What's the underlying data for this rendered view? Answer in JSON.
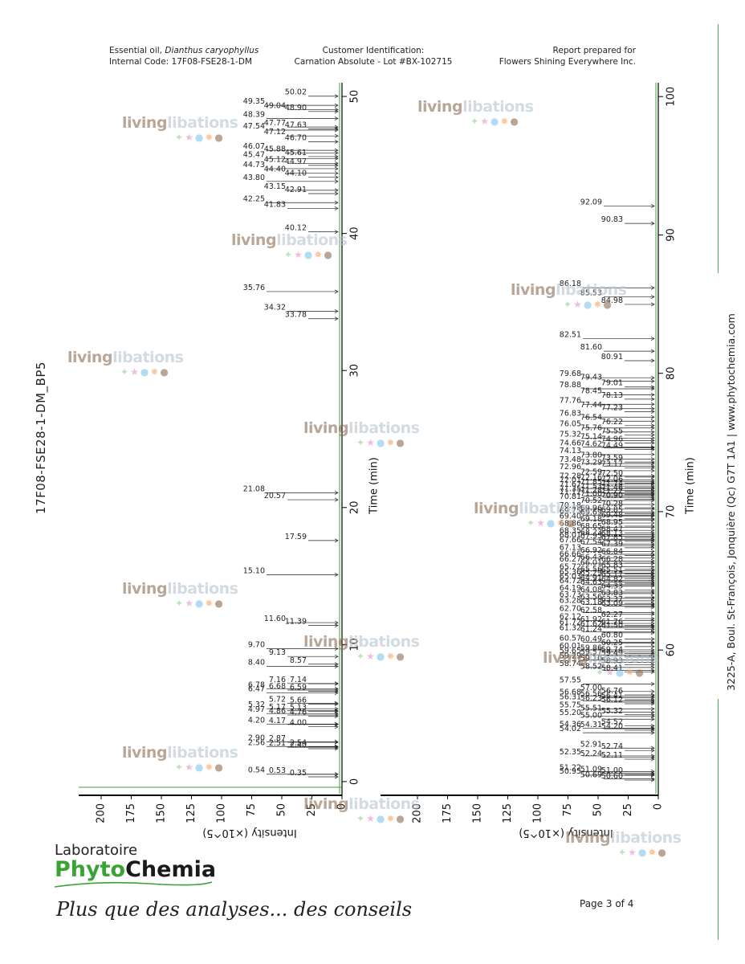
{
  "header": {
    "left_line1_prefix": "Essential oil, ",
    "left_line1_italic": "Dianthus caryophyllus",
    "left_line2": "Internal Code: 17F08-FSE28-1-DM",
    "mid_line1": "Customer Identification:",
    "mid_line2": "Carnation Absolute - Lot #BX-102715",
    "right_line1": "Report prepared for",
    "right_line2": "Flowers Shining Everywhere Inc."
  },
  "sample_label": "17F08-FSE28-1-DM_BP5",
  "side_address": "3225-A, Boul. St-François, Jonquière (Qc)  G7T 1A1  |  www.phytochemia.com",
  "footer": {
    "lab_line1": "Laboratoire",
    "lab_line2_a": "Phy",
    "lab_line2_b": "to",
    "lab_line2_c": "Chemia",
    "slogan": "Plus que des analyses... des conseils",
    "page": "Page 3 of 4"
  },
  "watermark": {
    "part1": "living",
    "part2": "libations",
    "dots": "✦★●✸●"
  },
  "colors": {
    "accent_green": "#3aa335",
    "trace": "#222222",
    "axis": "#000000"
  },
  "chart_data": [
    {
      "type": "line",
      "title": "",
      "xlabel": "Time (min)",
      "ylabel": "Intensity (x10^5)",
      "xlim": [
        -1,
        51
      ],
      "ylim": [
        0,
        220
      ],
      "x_ticks": [
        0,
        10,
        20,
        30,
        40,
        50
      ],
      "y_ticks": [
        0,
        25,
        50,
        75,
        100,
        125,
        150,
        175,
        200
      ],
      "y_tick_labels": [
        "0",
        "25",
        "50",
        "75",
        "100",
        "125",
        "150",
        "175",
        "200"
      ],
      "y_unit_label": "Intensity (×10^5)",
      "peaks": [
        {
          "t": 0.35,
          "label": "0.35"
        },
        {
          "t": 0.53,
          "label": "0.53"
        },
        {
          "t": 0.54,
          "label": "0.54"
        },
        {
          "t": 2.4,
          "label": "2.40"
        },
        {
          "t": 2.51,
          "label": "2.51"
        },
        {
          "t": 2.56,
          "label": "2.56"
        },
        {
          "t": 2.54,
          "label": "2.54"
        },
        {
          "t": 2.87,
          "label": "2.87"
        },
        {
          "t": 2.9,
          "label": "2.90"
        },
        {
          "t": 4.0,
          "label": "4.00"
        },
        {
          "t": 4.17,
          "label": "4.17"
        },
        {
          "t": 4.2,
          "label": "4.20"
        },
        {
          "t": 4.76,
          "label": "4.76"
        },
        {
          "t": 4.86,
          "label": "4.86"
        },
        {
          "t": 4.97,
          "label": "4.97"
        },
        {
          "t": 5.13,
          "label": "5.13"
        },
        {
          "t": 5.17,
          "label": "5.17"
        },
        {
          "t": 5.32,
          "label": "5.32"
        },
        {
          "t": 5.66,
          "label": "5.66"
        },
        {
          "t": 5.72,
          "label": "5.72"
        },
        {
          "t": 6.47,
          "label": "6.47"
        },
        {
          "t": 6.59,
          "label": "6.59"
        },
        {
          "t": 6.68,
          "label": "6.68"
        },
        {
          "t": 6.78,
          "label": "6.78"
        },
        {
          "t": 7.14,
          "label": "7.14"
        },
        {
          "t": 7.16,
          "label": "7.16"
        },
        {
          "t": 8.4,
          "label": "8.40"
        },
        {
          "t": 8.57,
          "label": "8.57"
        },
        {
          "t": 9.13,
          "label": "9.13"
        },
        {
          "t": 9.7,
          "label": "9.70"
        },
        {
          "t": 11.39,
          "label": "11.39"
        },
        {
          "t": 11.6,
          "label": "11.60"
        },
        {
          "t": 15.1,
          "label": "15.10"
        },
        {
          "t": 17.59,
          "label": "17.59"
        },
        {
          "t": 20.57,
          "label": "20.57"
        },
        {
          "t": 21.08,
          "label": "21.08"
        },
        {
          "t": 33.78,
          "label": "33.78"
        },
        {
          "t": 34.32,
          "label": "34.32"
        },
        {
          "t": 35.76,
          "label": "35.76"
        },
        {
          "t": 40.12,
          "label": "40.12"
        },
        {
          "t": 41.83,
          "label": "41.83"
        },
        {
          "t": 42.25,
          "label": "42.25"
        },
        {
          "t": 42.91,
          "label": "42.91"
        },
        {
          "t": 43.15,
          "label": "43.15"
        },
        {
          "t": 43.8,
          "label": "43.80"
        },
        {
          "t": 44.1,
          "label": "44.10"
        },
        {
          "t": 44.4,
          "label": "44.40"
        },
        {
          "t": 44.73,
          "label": "44.73"
        },
        {
          "t": 44.97,
          "label": "44.97"
        },
        {
          "t": 45.12,
          "label": "45.12"
        },
        {
          "t": 45.47,
          "label": "45.47"
        },
        {
          "t": 45.61,
          "label": "45.61"
        },
        {
          "t": 45.88,
          "label": "45.88"
        },
        {
          "t": 46.07,
          "label": "46.07"
        },
        {
          "t": 46.7,
          "label": "46.70"
        },
        {
          "t": 47.12,
          "label": "47.12"
        },
        {
          "t": 47.54,
          "label": "47.54"
        },
        {
          "t": 47.63,
          "label": "47.63"
        },
        {
          "t": 47.77,
          "label": "47.77"
        },
        {
          "t": 48.39,
          "label": "48.39"
        },
        {
          "t": 48.9,
          "label": "48.90"
        },
        {
          "t": 49.04,
          "label": "49.04"
        },
        {
          "t": 49.35,
          "label": "49.35"
        },
        {
          "t": 50.02,
          "label": "50.02"
        }
      ]
    },
    {
      "type": "line",
      "title": "",
      "xlabel": "Time (min)",
      "ylabel": "Intensity (x10^5)",
      "xlim": [
        49.5,
        101
      ],
      "ylim": [
        0,
        220
      ],
      "x_ticks": [
        60,
        70,
        80,
        90,
        100
      ],
      "y_ticks": [
        0,
        25,
        50,
        75,
        100,
        125,
        150,
        175,
        200
      ],
      "y_tick_labels": [
        "0",
        "25",
        "50",
        "75",
        "100",
        "125",
        "150",
        "175",
        "200"
      ],
      "y_unit_label": "Intensity (×10^5)",
      "peaks": [
        {
          "t": 50.6,
          "label": "50.60"
        },
        {
          "t": 50.69,
          "label": "50.69"
        },
        {
          "t": 50.95,
          "label": "50.95"
        },
        {
          "t": 51.0,
          "label": "51.00"
        },
        {
          "t": 51.09,
          "label": "51.09"
        },
        {
          "t": 51.22,
          "label": "51.22"
        },
        {
          "t": 52.11,
          "label": "52.11"
        },
        {
          "t": 52.24,
          "label": "52.24"
        },
        {
          "t": 52.35,
          "label": "52.35"
        },
        {
          "t": 52.74,
          "label": "52.74"
        },
        {
          "t": 52.91,
          "label": "52.91"
        },
        {
          "t": 54.02,
          "label": "54.02"
        },
        {
          "t": 54.2,
          "label": "54.20"
        },
        {
          "t": 54.31,
          "label": "54.31"
        },
        {
          "t": 54.36,
          "label": "54.36"
        },
        {
          "t": 54.52,
          "label": "54.52"
        },
        {
          "t": 55.0,
          "label": "55.00"
        },
        {
          "t": 55.2,
          "label": "55.20"
        },
        {
          "t": 55.32,
          "label": "55.32"
        },
        {
          "t": 55.51,
          "label": "55.51"
        },
        {
          "t": 55.75,
          "label": "55.75"
        },
        {
          "t": 56.12,
          "label": "56.12"
        },
        {
          "t": 56.23,
          "label": "56.23"
        },
        {
          "t": 56.31,
          "label": "56.31"
        },
        {
          "t": 56.41,
          "label": "56.41"
        },
        {
          "t": 56.56,
          "label": "56.56"
        },
        {
          "t": 56.68,
          "label": "56.68"
        },
        {
          "t": 56.76,
          "label": "56.76"
        },
        {
          "t": 57.0,
          "label": "57.00"
        },
        {
          "t": 57.55,
          "label": "57.55"
        },
        {
          "t": 58.41,
          "label": "58.41"
        },
        {
          "t": 58.52,
          "label": "58.52"
        },
        {
          "t": 58.74,
          "label": "58.74"
        },
        {
          "t": 58.93,
          "label": "58.93"
        },
        {
          "t": 59.1,
          "label": "59.10"
        },
        {
          "t": 59.29,
          "label": "59.29"
        },
        {
          "t": 59.49,
          "label": "59.49"
        },
        {
          "t": 59.57,
          "label": "59.57"
        },
        {
          "t": 59.65,
          "label": "59.65"
        },
        {
          "t": 59.74,
          "label": "59.74"
        },
        {
          "t": 59.86,
          "label": "59.86"
        },
        {
          "t": 60.01,
          "label": "60.01"
        },
        {
          "t": 60.25,
          "label": "60.25"
        },
        {
          "t": 60.49,
          "label": "60.49"
        },
        {
          "t": 60.57,
          "label": "60.57"
        },
        {
          "t": 60.8,
          "label": "60.80"
        },
        {
          "t": 61.24,
          "label": "61.24"
        },
        {
          "t": 61.32,
          "label": "61.32"
        },
        {
          "t": 61.5,
          "label": "61.50"
        },
        {
          "t": 61.62,
          "label": "61.62"
        },
        {
          "t": 61.72,
          "label": "61.72"
        },
        {
          "t": 61.76,
          "label": "61.76"
        },
        {
          "t": 61.92,
          "label": "61.92"
        },
        {
          "t": 62.12,
          "label": "62.12"
        },
        {
          "t": 62.27,
          "label": "62.27"
        },
        {
          "t": 62.58,
          "label": "62.58"
        },
        {
          "t": 62.7,
          "label": "62.70"
        },
        {
          "t": 63.09,
          "label": "63.09"
        },
        {
          "t": 63.18,
          "label": "63.18"
        },
        {
          "t": 63.28,
          "label": "63.28"
        },
        {
          "t": 63.37,
          "label": "63.37"
        },
        {
          "t": 63.56,
          "label": "63.56"
        },
        {
          "t": 63.73,
          "label": "63.73"
        },
        {
          "t": 63.83,
          "label": "63.83"
        },
        {
          "t": 64.08,
          "label": "64.08"
        },
        {
          "t": 64.19,
          "label": "64.19"
        },
        {
          "t": 64.33,
          "label": "64.33"
        },
        {
          "t": 64.63,
          "label": "64.63"
        },
        {
          "t": 64.72,
          "label": "64.72"
        },
        {
          "t": 64.82,
          "label": "64.82"
        },
        {
          "t": 64.91,
          "label": "64.91"
        },
        {
          "t": 65.03,
          "label": "65.03"
        },
        {
          "t": 65.17,
          "label": "65.17"
        },
        {
          "t": 65.29,
          "label": "65.29"
        },
        {
          "t": 65.36,
          "label": "65.36"
        },
        {
          "t": 65.51,
          "label": "65.51"
        },
        {
          "t": 65.56,
          "label": "65.56"
        },
        {
          "t": 65.72,
          "label": "65.72"
        },
        {
          "t": 65.83,
          "label": "65.83"
        },
        {
          "t": 66.01,
          "label": "66.01"
        },
        {
          "t": 66.27,
          "label": "66.27"
        },
        {
          "t": 66.28,
          "label": "66.28"
        },
        {
          "t": 66.43,
          "label": "66.43"
        },
        {
          "t": 66.66,
          "label": "66.66"
        },
        {
          "t": 66.84,
          "label": "66.84"
        },
        {
          "t": 66.92,
          "label": "66.92"
        },
        {
          "t": 67.13,
          "label": "67.13"
        },
        {
          "t": 67.39,
          "label": "67.39"
        },
        {
          "t": 67.54,
          "label": "67.54"
        },
        {
          "t": 67.66,
          "label": "67.66"
        },
        {
          "t": 67.85,
          "label": "67.85"
        },
        {
          "t": 67.95,
          "label": "67.95"
        },
        {
          "t": 68.01,
          "label": "68.01"
        },
        {
          "t": 68.13,
          "label": "68.13"
        },
        {
          "t": 68.23,
          "label": "68.23"
        },
        {
          "t": 68.35,
          "label": "68.35"
        },
        {
          "t": 68.47,
          "label": "68.47"
        },
        {
          "t": 68.65,
          "label": "68.65"
        },
        {
          "t": 68.86,
          "label": "68.86"
        },
        {
          "t": 68.95,
          "label": "68.95"
        },
        {
          "t": 69.18,
          "label": "69.18"
        },
        {
          "t": 69.4,
          "label": "69.40"
        },
        {
          "t": 69.48,
          "label": "69.48"
        },
        {
          "t": 69.69,
          "label": "69.69"
        },
        {
          "t": 69.75,
          "label": "69.75"
        },
        {
          "t": 69.85,
          "label": "69.85"
        },
        {
          "t": 69.96,
          "label": "69.96"
        },
        {
          "t": 70.18,
          "label": "70.18"
        },
        {
          "t": 70.28,
          "label": "70.28"
        },
        {
          "t": 70.52,
          "label": "70.52"
        },
        {
          "t": 70.81,
          "label": "70.81"
        },
        {
          "t": 70.9,
          "label": "70.90"
        },
        {
          "t": 71.0,
          "label": "71.00"
        },
        {
          "t": 71.12,
          "label": "71.12"
        },
        {
          "t": 71.22,
          "label": "71.22"
        },
        {
          "t": 71.28,
          "label": "71.28"
        },
        {
          "t": 71.35,
          "label": "71.35"
        },
        {
          "t": 71.46,
          "label": "71.46"
        },
        {
          "t": 71.53,
          "label": "71.53"
        },
        {
          "t": 71.67,
          "label": "71.67"
        },
        {
          "t": 71.74,
          "label": "71.74"
        },
        {
          "t": 71.85,
          "label": "71.85"
        },
        {
          "t": 72.01,
          "label": "72.01"
        },
        {
          "t": 72.06,
          "label": "72.06"
        },
        {
          "t": 72.16,
          "label": "72.16"
        },
        {
          "t": 72.28,
          "label": "72.28"
        },
        {
          "t": 72.5,
          "label": "72.50"
        },
        {
          "t": 72.59,
          "label": "72.59"
        },
        {
          "t": 72.96,
          "label": "72.96"
        },
        {
          "t": 73.17,
          "label": "73.17"
        },
        {
          "t": 73.29,
          "label": "73.29"
        },
        {
          "t": 73.48,
          "label": "73.48"
        },
        {
          "t": 73.59,
          "label": "73.59"
        },
        {
          "t": 73.8,
          "label": "73.80"
        },
        {
          "t": 74.13,
          "label": "74.13"
        },
        {
          "t": 74.49,
          "label": "74.49"
        },
        {
          "t": 74.62,
          "label": "74.62"
        },
        {
          "t": 74.66,
          "label": "74.66"
        },
        {
          "t": 74.96,
          "label": "74.96"
        },
        {
          "t": 75.14,
          "label": "75.14"
        },
        {
          "t": 75.32,
          "label": "75.32"
        },
        {
          "t": 75.55,
          "label": "75.55"
        },
        {
          "t": 75.76,
          "label": "75.76"
        },
        {
          "t": 76.05,
          "label": "76.05"
        },
        {
          "t": 76.22,
          "label": "76.22"
        },
        {
          "t": 76.54,
          "label": "76.54"
        },
        {
          "t": 76.83,
          "label": "76.83"
        },
        {
          "t": 77.23,
          "label": "77.23"
        },
        {
          "t": 77.44,
          "label": "77.44"
        },
        {
          "t": 77.76,
          "label": "77.76"
        },
        {
          "t": 78.13,
          "label": "78.13"
        },
        {
          "t": 78.45,
          "label": "78.45"
        },
        {
          "t": 78.88,
          "label": "78.88"
        },
        {
          "t": 79.01,
          "label": "79.01"
        },
        {
          "t": 79.43,
          "label": "79.43"
        },
        {
          "t": 79.68,
          "label": "79.68"
        },
        {
          "t": 80.91,
          "label": "80.91"
        },
        {
          "t": 81.6,
          "label": "81.60"
        },
        {
          "t": 82.51,
          "label": "82.51"
        },
        {
          "t": 84.98,
          "label": "84.98"
        },
        {
          "t": 85.53,
          "label": "85.53"
        },
        {
          "t": 86.18,
          "label": "86.18"
        },
        {
          "t": 90.83,
          "label": "90.83"
        },
        {
          "t": 92.09,
          "label": "92.09"
        }
      ]
    }
  ]
}
